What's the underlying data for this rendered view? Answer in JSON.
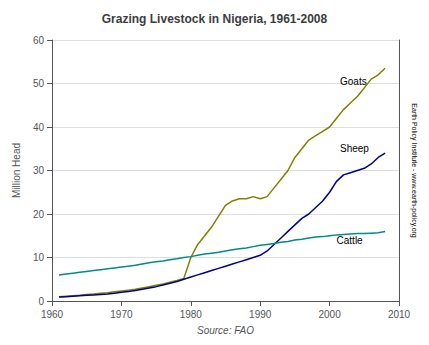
{
  "chart_data": {
    "type": "line",
    "title": "Grazing Livestock in Nigeria, 1961-2008",
    "xlabel": "Source: FAO",
    "ylabel": "Million Head",
    "y2label": "Earth Policy Institute - www.earth-policy.org",
    "x": [
      1961,
      1962,
      1963,
      1964,
      1965,
      1966,
      1967,
      1968,
      1969,
      1970,
      1971,
      1972,
      1973,
      1974,
      1975,
      1976,
      1977,
      1978,
      1979,
      1980,
      1981,
      1982,
      1983,
      1984,
      1985,
      1986,
      1987,
      1988,
      1989,
      1990,
      1991,
      1992,
      1993,
      1994,
      1995,
      1996,
      1997,
      1998,
      1999,
      2000,
      2001,
      2002,
      2003,
      2004,
      2005,
      2006,
      2007,
      2008
    ],
    "series": [
      {
        "name": "Goats",
        "color": "#808000",
        "values": [
          1.0,
          1.1,
          1.2,
          1.3,
          1.5,
          1.6,
          1.8,
          1.9,
          2.1,
          2.3,
          2.5,
          2.7,
          3.0,
          3.3,
          3.6,
          3.9,
          4.3,
          4.7,
          5.2,
          10.0,
          13.0,
          15.0,
          17.0,
          19.5,
          22.0,
          23.0,
          23.5,
          23.5,
          24.0,
          23.5,
          24.0,
          26.0,
          28.0,
          30.0,
          33.0,
          35.0,
          37.0,
          38.0,
          39.0,
          40.0,
          42.0,
          44.0,
          45.5,
          47.0,
          49.0,
          51.0,
          52.0,
          53.5
        ]
      },
      {
        "name": "Sheep",
        "color": "#00008B",
        "values": [
          0.9,
          1.0,
          1.1,
          1.2,
          1.3,
          1.4,
          1.5,
          1.6,
          1.8,
          2.0,
          2.2,
          2.4,
          2.7,
          3.0,
          3.3,
          3.7,
          4.1,
          4.5,
          5.0,
          5.5,
          6.0,
          6.5,
          7.0,
          7.5,
          8.0,
          8.5,
          9.0,
          9.5,
          10.0,
          10.5,
          11.5,
          13.0,
          14.5,
          16.0,
          17.5,
          19.0,
          20.0,
          21.5,
          23.0,
          25.0,
          27.5,
          29.0,
          29.5,
          30.0,
          30.5,
          31.5,
          33.0,
          34.0
        ]
      },
      {
        "name": "Cattle",
        "color": "#008B8B",
        "values": [
          6.0,
          6.2,
          6.4,
          6.6,
          6.8,
          7.0,
          7.2,
          7.4,
          7.6,
          7.8,
          8.0,
          8.2,
          8.5,
          8.8,
          9.0,
          9.2,
          9.5,
          9.7,
          10.0,
          10.2,
          10.5,
          10.8,
          11.0,
          11.2,
          11.5,
          11.8,
          12.0,
          12.2,
          12.5,
          12.8,
          13.0,
          13.2,
          13.5,
          13.7,
          14.0,
          14.2,
          14.5,
          14.7,
          14.8,
          15.0,
          15.2,
          15.3,
          15.4,
          15.5,
          15.5,
          15.6,
          15.7,
          16.0
        ]
      }
    ],
    "annotations": [
      {
        "text": "Goats",
        "x": 2001.5,
        "y": 50.5
      },
      {
        "text": "Sheep",
        "x": 2001.5,
        "y": 35.0
      },
      {
        "text": "Cattle",
        "x": 2001.0,
        "y": 14.0
      }
    ],
    "xlim": [
      1960,
      2010
    ],
    "xticks": [
      1960,
      1970,
      1980,
      1990,
      2000,
      2010
    ],
    "ylim": [
      0,
      60
    ],
    "yticks": [
      0,
      10,
      20,
      30,
      40,
      50,
      60
    ],
    "grid": true
  }
}
